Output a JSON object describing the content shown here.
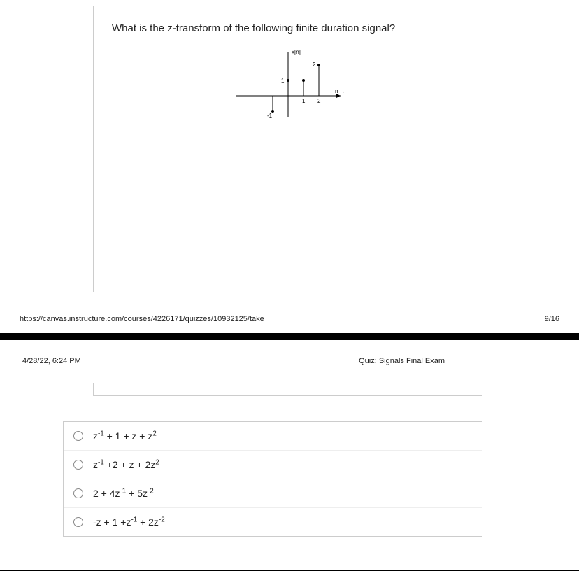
{
  "question": {
    "prompt": "What is the z-transform of the following finite duration signal?",
    "plot": {
      "type": "stem",
      "x_values": [
        -1,
        0,
        1,
        2
      ],
      "y_values": [
        -1,
        1,
        1,
        2
      ],
      "x_label": "n",
      "y_label": "x[n]",
      "tick_labels_x": [
        "1",
        "2"
      ],
      "tick_labels_y": [
        "1",
        "2",
        "-1"
      ],
      "axis_color": "#000000",
      "stem_color": "#000000",
      "background": "#ffffff"
    }
  },
  "footer": {
    "url": "https://canvas.instructure.com/courses/4226171/quizzes/10932125/take",
    "page": "9/16"
  },
  "header": {
    "timestamp": "4/28/22, 6:24 PM",
    "title": "Quiz: Signals Final Exam"
  },
  "options": [
    {
      "html": "z<sup>-1</sup> + 1 + z + z<sup>2</sup>"
    },
    {
      "html": "z<sup>-1</sup> +2 + z + 2z<sup>2</sup>"
    },
    {
      "html": "2 + 4z<sup>-1</sup> + 5z<sup>-2</sup>"
    },
    {
      "html": "-z + 1 +z<sup>-1</sup> + 2z<sup>-2</sup>"
    }
  ]
}
